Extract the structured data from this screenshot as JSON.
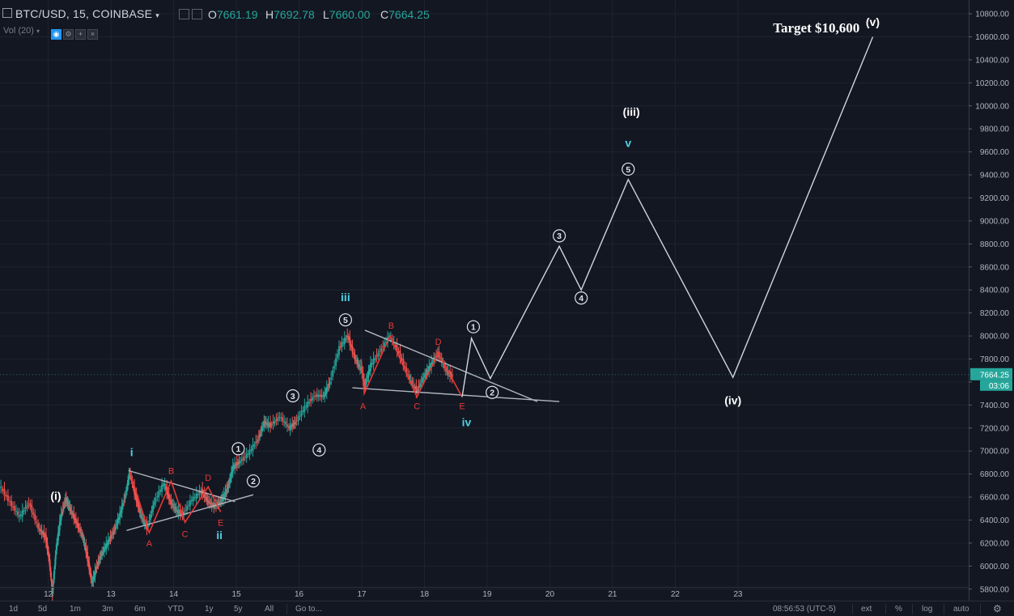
{
  "header": {
    "symbol": "BTC/USD, 15, COINBASE",
    "open_label": "O",
    "open": "7661.19",
    "high_label": "H",
    "high": "7692.78",
    "low_label": "L",
    "low": "7660.00",
    "close_label": "C",
    "close": "7664.25",
    "volume_label": "Vol (20)"
  },
  "bottom_bar": {
    "ranges": [
      "1d",
      "5d",
      "1m",
      "3m",
      "6m",
      "YTD",
      "1y",
      "5y",
      "All"
    ],
    "goto": "Go to...",
    "clock": "08:56:53 (UTC-5)",
    "ext": "ext",
    "percent": "%",
    "log": "log",
    "auto": "auto"
  },
  "price_tag": {
    "price": "7664.25",
    "countdown": "03:06"
  },
  "colors": {
    "background": "#131722",
    "up": "#26a69a",
    "down": "#ef5350",
    "projection": "#d1d4dc",
    "correction": "#e53935",
    "cyan_label": "#4dd0e1",
    "trendline": "#b2b5be"
  },
  "chart_data": {
    "type": "line",
    "title": "",
    "x_ticks": [
      "12",
      "13",
      "14",
      "15",
      "16",
      "17",
      "18",
      "19",
      "20",
      "21",
      "22",
      "23"
    ],
    "y_ticks": [
      5800,
      6000,
      6200,
      6400,
      6600,
      6800,
      7000,
      7200,
      7400,
      7600,
      7800,
      8000,
      8200,
      8400,
      8600,
      8800,
      9000,
      9200,
      9400,
      9600,
      9800,
      10000,
      10200,
      10400,
      10600,
      10800
    ],
    "y_tick_labels": [
      "5800.00",
      "6000.00",
      "6200.00",
      "6400.00",
      "6600.00",
      "6800.00",
      "7000.00",
      "7200.00",
      "7400.00",
      "7600.00",
      "7800.00",
      "8000.00",
      "8200.00",
      "8400.00",
      "8600.00",
      "8800.00",
      "9000.00",
      "9200.00",
      "9400.00",
      "9600.00",
      "9800.00",
      "10000.00",
      "10200.00",
      "10400.00",
      "10600.00",
      "10800.00"
    ],
    "xlim": [
      11.23,
      26.68
    ],
    "ylim": [
      5700,
      10920
    ],
    "grid": true,
    "price_path": [
      [
        11.23,
        6700
      ],
      [
        11.4,
        6550
      ],
      [
        11.55,
        6430
      ],
      [
        11.7,
        6550
      ],
      [
        11.85,
        6330
      ],
      [
        11.96,
        6250
      ],
      [
        12.02,
        6050
      ],
      [
        12.07,
        5760
      ],
      [
        12.13,
        6150
      ],
      [
        12.2,
        6420
      ],
      [
        12.28,
        6580
      ],
      [
        12.35,
        6500
      ],
      [
        12.45,
        6380
      ],
      [
        12.55,
        6260
      ],
      [
        12.62,
        6100
      ],
      [
        12.7,
        5850
      ],
      [
        12.78,
        6000
      ],
      [
        12.85,
        6100
      ],
      [
        12.95,
        6200
      ],
      [
        13.05,
        6300
      ],
      [
        13.15,
        6450
      ],
      [
        13.25,
        6650
      ],
      [
        13.3,
        6820
      ],
      [
        13.4,
        6600
      ],
      [
        13.48,
        6440
      ],
      [
        13.58,
        6330
      ],
      [
        13.7,
        6560
      ],
      [
        13.85,
        6720
      ],
      [
        13.95,
        6560
      ],
      [
        14.05,
        6480
      ],
      [
        14.15,
        6450
      ],
      [
        14.3,
        6580
      ],
      [
        14.45,
        6650
      ],
      [
        14.55,
        6560
      ],
      [
        14.65,
        6520
      ],
      [
        14.75,
        6560
      ],
      [
        14.82,
        6620
      ],
      [
        14.88,
        6700
      ],
      [
        14.95,
        6860
      ],
      [
        15.05,
        6900
      ],
      [
        15.2,
        6980
      ],
      [
        15.35,
        7100
      ],
      [
        15.45,
        7250
      ],
      [
        15.55,
        7220
      ],
      [
        15.7,
        7300
      ],
      [
        15.85,
        7200
      ],
      [
        15.95,
        7250
      ],
      [
        16.1,
        7380
      ],
      [
        16.25,
        7480
      ],
      [
        16.4,
        7480
      ],
      [
        16.5,
        7600
      ],
      [
        16.65,
        7900
      ],
      [
        16.78,
        8000
      ],
      [
        16.9,
        7800
      ],
      [
        17.0,
        7700
      ],
      [
        17.05,
        7560
      ],
      [
        17.15,
        7750
      ],
      [
        17.3,
        7870
      ],
      [
        17.45,
        8000
      ],
      [
        17.6,
        7850
      ],
      [
        17.75,
        7650
      ],
      [
        17.88,
        7520
      ],
      [
        18.0,
        7650
      ],
      [
        18.1,
        7740
      ],
      [
        18.22,
        7850
      ],
      [
        18.35,
        7700
      ],
      [
        18.45,
        7640
      ]
    ],
    "price_path_color": "#26a69a",
    "wave_projection": [
      [
        18.6,
        7470
      ],
      [
        18.75,
        7980
      ],
      [
        19.05,
        7630
      ],
      [
        20.15,
        8780
      ],
      [
        20.5,
        8400
      ],
      [
        21.25,
        9360
      ],
      [
        22.92,
        7640
      ],
      [
        25.15,
        10600
      ]
    ],
    "corrective_paths": [
      [
        [
          13.3,
          6820
        ],
        [
          13.61,
          6290
        ],
        [
          13.96,
          6740
        ],
        [
          14.18,
          6380
        ],
        [
          14.55,
          6690
        ],
        [
          14.75,
          6470
        ]
      ],
      [
        [
          16.99,
          7800
        ],
        [
          17.04,
          7500
        ],
        [
          17.45,
          8000
        ],
        [
          17.88,
          7470
        ],
        [
          18.22,
          7850
        ],
        [
          18.6,
          7470
        ]
      ]
    ],
    "trendlines": [
      [
        [
          13.28,
          6830
        ],
        [
          14.98,
          6560
        ]
      ],
      [
        [
          13.25,
          6310
        ],
        [
          15.27,
          6620
        ]
      ],
      [
        [
          17.05,
          8050
        ],
        [
          19.8,
          7430
        ]
      ],
      [
        [
          16.85,
          7550
        ],
        [
          20.15,
          7430
        ]
      ]
    ],
    "wave_labels": [
      {
        "text": "(i)",
        "x": 12.12,
        "y": 6610,
        "style": "white"
      },
      {
        "text": "i",
        "x": 13.33,
        "y": 6990,
        "style": "cyan"
      },
      {
        "text": "A",
        "x": 13.61,
        "y": 6200,
        "style": "red"
      },
      {
        "text": "B",
        "x": 13.96,
        "y": 6830,
        "style": "red"
      },
      {
        "text": "C",
        "x": 14.18,
        "y": 6280,
        "style": "red"
      },
      {
        "text": "D",
        "x": 14.55,
        "y": 6770,
        "style": "red"
      },
      {
        "text": "E",
        "x": 14.75,
        "y": 6380,
        "style": "red"
      },
      {
        "text": "ii",
        "x": 14.73,
        "y": 6270,
        "style": "cyan"
      },
      {
        "text": "1",
        "x": 15.03,
        "y": 7020,
        "style": "circle"
      },
      {
        "text": "2",
        "x": 15.27,
        "y": 6740,
        "style": "circle"
      },
      {
        "text": "3",
        "x": 15.9,
        "y": 7480,
        "style": "circle"
      },
      {
        "text": "4",
        "x": 16.32,
        "y": 7010,
        "style": "circle"
      },
      {
        "text": "iii",
        "x": 16.74,
        "y": 8340,
        "style": "cyan"
      },
      {
        "text": "5",
        "x": 16.74,
        "y": 8140,
        "style": "circle"
      },
      {
        "text": "A",
        "x": 17.02,
        "y": 7390,
        "style": "red"
      },
      {
        "text": "B",
        "x": 17.47,
        "y": 8090,
        "style": "red"
      },
      {
        "text": "C",
        "x": 17.88,
        "y": 7390,
        "style": "red"
      },
      {
        "text": "D",
        "x": 18.22,
        "y": 7950,
        "style": "red"
      },
      {
        "text": "E",
        "x": 18.6,
        "y": 7390,
        "style": "red"
      },
      {
        "text": "iv",
        "x": 18.67,
        "y": 7250,
        "style": "cyan"
      },
      {
        "text": "1",
        "x": 18.78,
        "y": 8080,
        "style": "circle"
      },
      {
        "text": "2",
        "x": 19.08,
        "y": 7510,
        "style": "circle"
      },
      {
        "text": "3",
        "x": 20.15,
        "y": 8870,
        "style": "circle"
      },
      {
        "text": "4",
        "x": 20.5,
        "y": 8330,
        "style": "circle"
      },
      {
        "text": "(iii)",
        "x": 21.3,
        "y": 9950,
        "style": "white"
      },
      {
        "text": "v",
        "x": 21.25,
        "y": 9680,
        "style": "cyan"
      },
      {
        "text": "5",
        "x": 21.25,
        "y": 9450,
        "style": "circle"
      },
      {
        "text": "(iv)",
        "x": 22.92,
        "y": 7440,
        "style": "white"
      },
      {
        "text": "(v)",
        "x": 25.15,
        "y": 10730,
        "style": "white"
      },
      {
        "text": "Target $10,600",
        "x": 24.25,
        "y": 10680,
        "style": "target"
      }
    ]
  }
}
